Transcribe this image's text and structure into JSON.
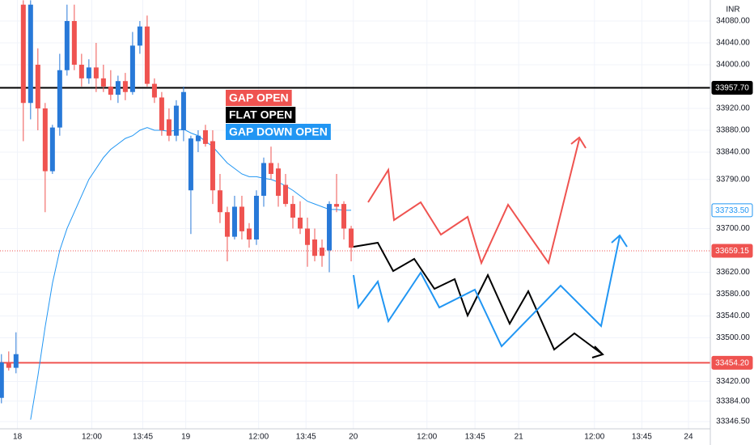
{
  "chart_data": {
    "type": "candlestick",
    "currency": "INR",
    "x": [
      0,
      1,
      2,
      3,
      4,
      5,
      6,
      7,
      8,
      9,
      10,
      11,
      12,
      13,
      14,
      15,
      16,
      17,
      18,
      19,
      20,
      21,
      22,
      23,
      24,
      25,
      26,
      27,
      28,
      29,
      30,
      31,
      32,
      33,
      34,
      35,
      36,
      37,
      38,
      39,
      40,
      41,
      42,
      43,
      44,
      45,
      46,
      47,
      48
    ],
    "open": [
      33390,
      33455,
      33445,
      34110,
      33930,
      34000,
      33920,
      33805,
      33885,
      33990,
      34080,
      34000,
      33975,
      33995,
      33975,
      33960,
      33945,
      33970,
      33950,
      34035,
      34070,
      33965,
      33940,
      33900,
      33870,
      33880,
      33770,
      33860,
      33880,
      33860,
      33770,
      33730,
      33685,
      33740,
      33700,
      33680,
      33760,
      33820,
      33810,
      33780,
      33745,
      33720,
      33700,
      33680,
      33665,
      33660,
      33745,
      33745,
      33700
    ],
    "high": [
      33470,
      33475,
      33510,
      34118,
      34118,
      34030,
      33930,
      33890,
      34020,
      34110,
      34110,
      34020,
      34010,
      34040,
      34000,
      33990,
      33980,
      33985,
      34060,
      34080,
      34090,
      33975,
      33950,
      33920,
      33935,
      33960,
      33870,
      33880,
      33890,
      33880,
      33800,
      33740,
      33760,
      33760,
      33710,
      33770,
      33830,
      33850,
      33820,
      33800,
      33760,
      33750,
      33720,
      33700,
      33680,
      33750,
      33800,
      33750,
      33705
    ],
    "low": [
      33380,
      33440,
      33435,
      33860,
      33900,
      33880,
      33730,
      33800,
      33870,
      33980,
      33990,
      33960,
      33965,
      33950,
      33950,
      33935,
      33930,
      33935,
      33945,
      34020,
      33960,
      33930,
      33870,
      33860,
      33860,
      33860,
      33690,
      33840,
      33850,
      33745,
      33710,
      33640,
      33680,
      33680,
      33665,
      33670,
      33740,
      33790,
      33740,
      33740,
      33700,
      33690,
      33630,
      33640,
      33630,
      33620,
      33730,
      33680,
      33640
    ],
    "close": [
      33455,
      33445,
      33470,
      33930,
      34110,
      33920,
      33805,
      33885,
      33990,
      34080,
      34000,
      33975,
      33995,
      33975,
      33960,
      33945,
      33970,
      33950,
      34035,
      34070,
      33965,
      33940,
      33880,
      33870,
      33925,
      33950,
      33865,
      33870,
      33855,
      33770,
      33730,
      33685,
      33740,
      33695,
      33680,
      33760,
      33820,
      33800,
      33760,
      33745,
      33720,
      33700,
      33670,
      33650,
      33650,
      33745,
      33740,
      33700,
      33665
    ],
    "moving_average": [
      null,
      null,
      null,
      null,
      33350,
      33430,
      33520,
      33600,
      33660,
      33700,
      33730,
      33760,
      33790,
      33810,
      33830,
      33845,
      33855,
      33865,
      33870,
      33880,
      33885,
      33880,
      33880,
      33878,
      33880,
      33882,
      33875,
      33870,
      33860,
      33850,
      33835,
      33820,
      33810,
      33800,
      33795,
      33795,
      33792,
      33790,
      33785,
      33778,
      33770,
      33760,
      33750,
      33745,
      33740,
      33735,
      33735,
      33733.5,
      33733.5
    ],
    "up_color": "#2879d8",
    "down_color": "#ef5350",
    "ma_color": "#2196f3",
    "xlim": [
      -0.2,
      97.3
    ],
    "ylim": [
      33333.3,
      34118.5
    ],
    "grid": true,
    "xticks": [
      {
        "value": 2.2,
        "label": "18"
      },
      {
        "value": 12.4,
        "label": "12:00"
      },
      {
        "value": 19.4,
        "label": "13:45"
      },
      {
        "value": 25.3,
        "label": "19"
      },
      {
        "value": 35.3,
        "label": "12:00"
      },
      {
        "value": 41.8,
        "label": "13:45"
      },
      {
        "value": 48.3,
        "label": "20"
      },
      {
        "value": 58.4,
        "label": "12:00"
      },
      {
        "value": 65,
        "label": "13:45"
      },
      {
        "value": 71,
        "label": "21"
      },
      {
        "value": 81.4,
        "label": "12:00"
      },
      {
        "value": 87.9,
        "label": "13:45"
      },
      {
        "value": 94.3,
        "label": "24"
      }
    ],
    "yticks": [
      {
        "value": 34080,
        "label": "34080.00"
      },
      {
        "value": 34040,
        "label": "34040.00"
      },
      {
        "value": 34000,
        "label": "34000.00"
      },
      {
        "value": 33920,
        "label": "33920.00"
      },
      {
        "value": 33880,
        "label": "33880.00"
      },
      {
        "value": 33840,
        "label": "33840.00"
      },
      {
        "value": 33790,
        "label": "33790.00"
      },
      {
        "value": 33700,
        "label": "33700.00"
      },
      {
        "value": 33620,
        "label": "33620.00"
      },
      {
        "value": 33580,
        "label": "33580.00"
      },
      {
        "value": 33540,
        "label": "33540.00"
      },
      {
        "value": 33500,
        "label": "33500.00"
      },
      {
        "value": 33420,
        "label": "33420.00"
      },
      {
        "value": 33384,
        "label": "33384.00"
      },
      {
        "value": 33346.5,
        "label": "33346.50"
      }
    ],
    "price_lines": [
      {
        "value": 33957.7,
        "label": "33957.70",
        "color": "#000000",
        "style": "solid"
      },
      {
        "value": 33733.5,
        "label": "33733.50",
        "color": "#2196f3",
        "style": "none"
      },
      {
        "value": 33659.15,
        "label": "33659.15",
        "color": "#ef5350",
        "style": "dotted"
      },
      {
        "value": 33454.2,
        "label": "33454.20",
        "color": "#ef5350",
        "style": "solid"
      }
    ],
    "annotations": [
      {
        "text": "GAP OPEN",
        "color": "#ef5350"
      },
      {
        "text": "FLAT OPEN",
        "color": "#000000"
      },
      {
        "text": "GAP DOWN OPEN",
        "color": "#2196f3"
      }
    ]
  }
}
